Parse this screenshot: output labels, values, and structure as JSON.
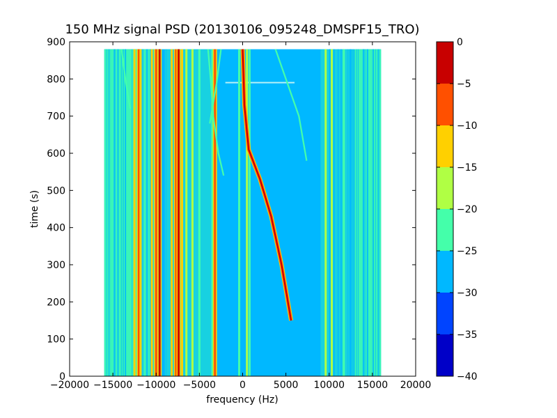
{
  "chart_data": {
    "type": "heatmap",
    "title": "150 MHz signal PSD (20130106_095248_DMSPF15_TRO)",
    "xlabel": "frequency (Hz)",
    "ylabel": "time (s)",
    "xlim": [
      -20000,
      20000
    ],
    "ylim": [
      0,
      900
    ],
    "xticks": [
      -20000,
      -15000,
      -10000,
      -5000,
      0,
      5000,
      10000,
      15000,
      20000
    ],
    "yticks": [
      0,
      100,
      200,
      300,
      400,
      500,
      600,
      700,
      800,
      900
    ],
    "data_extent": {
      "x": [
        -16000,
        16000
      ],
      "y": [
        0,
        880
      ]
    },
    "colorbar": {
      "min": -40,
      "max": 0,
      "levels": [
        -40,
        -35,
        -30,
        -25,
        -20,
        -15,
        -10,
        -5,
        0
      ],
      "ticks": [
        -40,
        -35,
        -30,
        -25,
        -20,
        -15,
        -10,
        -5,
        0
      ],
      "colors": [
        "#0000c8",
        "#0044ff",
        "#00b8ff",
        "#44ffaa",
        "#b0ff44",
        "#ffd000",
        "#ff5000",
        "#c80000"
      ]
    },
    "features": {
      "background_level": -27,
      "edge_band_level": -22,
      "vertical_lines": [
        {
          "x": -12500,
          "level": -12
        },
        {
          "x": -12000,
          "level": -8
        },
        {
          "x": -11800,
          "level": -12
        },
        {
          "x": -10500,
          "level": -14
        },
        {
          "x": -10000,
          "level": -8
        },
        {
          "x": -9600,
          "level": -3
        },
        {
          "x": -8200,
          "level": -14
        },
        {
          "x": -7700,
          "level": -8
        },
        {
          "x": -7400,
          "level": -3
        },
        {
          "x": -7000,
          "level": -12
        },
        {
          "x": -6500,
          "level": -18
        },
        {
          "x": -5800,
          "level": -18
        },
        {
          "x": -5000,
          "level": -22
        },
        {
          "x": -3500,
          "level": -22
        },
        {
          "x": -3200,
          "level": -8
        },
        {
          "x": -400,
          "level": -22
        },
        {
          "x": 500,
          "level": -20
        },
        {
          "x": 800,
          "level": -22
        },
        {
          "x": 9600,
          "level": -20
        },
        {
          "x": 10300,
          "level": -20
        },
        {
          "x": 11700,
          "level": -22
        }
      ],
      "drifting_signals": [
        {
          "points": [
            [
              5600,
              150
            ],
            [
              4500,
              300
            ],
            [
              3300,
              430
            ],
            [
              2000,
              530
            ],
            [
              700,
              610
            ],
            [
              200,
              730
            ],
            [
              0,
              880
            ]
          ],
          "level": -5
        },
        {
          "points": [
            [
              -3800,
              680
            ],
            [
              -3000,
              790
            ],
            [
              -2500,
              880
            ]
          ],
          "level": -22
        },
        {
          "points": [
            [
              3800,
              880
            ],
            [
              5000,
              800
            ],
            [
              6500,
              700
            ],
            [
              7400,
              580
            ]
          ],
          "level": -22
        },
        {
          "points": [
            [
              -14000,
              880
            ],
            [
              -13500,
              790
            ],
            [
              -13000,
              720
            ]
          ],
          "level": -22
        },
        {
          "points": [
            [
              -4000,
              880
            ],
            [
              -3700,
              800
            ],
            [
              -3400,
              700
            ],
            [
              -2800,
              600
            ],
            [
              -2200,
              540
            ]
          ],
          "level": -22
        }
      ]
    }
  }
}
